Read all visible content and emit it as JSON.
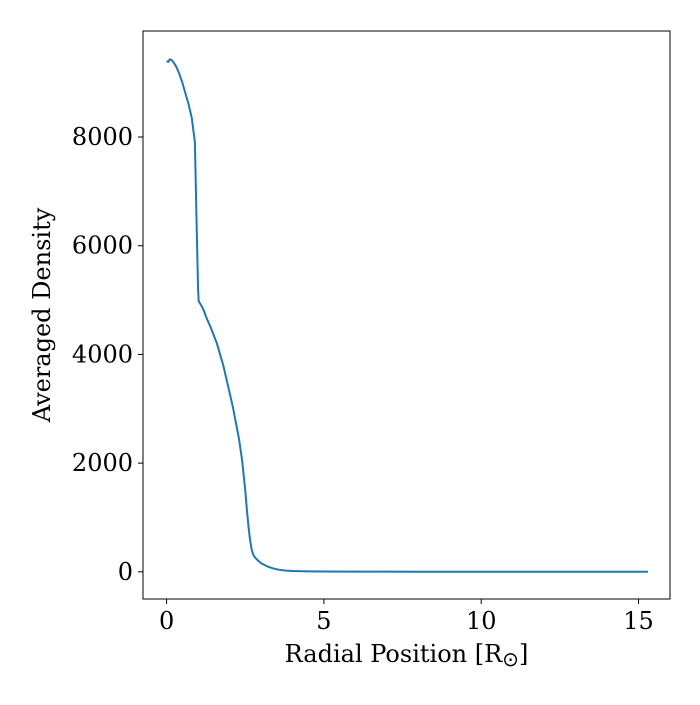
{
  "chart_data": {
    "type": "line",
    "title": "",
    "xlabel": "Radial Position [R",
    "xlabel_symbol": "⊙",
    "xlabel_close": "]",
    "ylabel": "Averaged Density",
    "xlim": [
      -0.75,
      16.0
    ],
    "ylim": [
      -500,
      9950
    ],
    "xticks": [
      0,
      5,
      10,
      15
    ],
    "xtick_labels": [
      "0",
      "5",
      "10",
      "15"
    ],
    "yticks": [
      0,
      2000,
      4000,
      6000,
      8000
    ],
    "ytick_labels": [
      "0",
      "2000",
      "4000",
      "6000",
      "8000"
    ],
    "grid": false,
    "legend": "none",
    "colors": {
      "line": "#1f77b4",
      "axes": "#000000"
    },
    "series": [
      {
        "x": [
          0.0,
          0.05,
          0.1,
          0.15,
          0.2,
          0.3,
          0.4,
          0.5,
          0.6,
          0.7,
          0.8,
          0.9,
          0.95,
          1.0,
          1.02,
          1.05,
          1.08,
          1.1,
          1.15,
          1.2,
          1.25,
          1.3,
          1.4,
          1.5,
          1.6,
          1.7,
          1.8,
          1.9,
          2.0,
          2.1,
          2.2,
          2.3,
          2.4,
          2.5,
          2.55,
          2.6,
          2.65,
          2.7,
          2.75,
          2.8,
          2.85,
          2.9,
          3.0,
          3.2,
          3.4,
          3.6,
          3.8,
          4.0,
          4.5,
          5.0,
          6.0,
          8.0,
          10.0,
          12.0,
          14.0,
          15.3
        ],
        "y": [
          9400,
          9380,
          9430,
          9420,
          9390,
          9300,
          9170,
          9000,
          8800,
          8600,
          8350,
          7900,
          6500,
          5200,
          4980,
          4950,
          4920,
          4900,
          4850,
          4780,
          4700,
          4630,
          4500,
          4350,
          4200,
          4000,
          3800,
          3550,
          3300,
          3050,
          2750,
          2450,
          2050,
          1500,
          1150,
          850,
          600,
          420,
          320,
          270,
          240,
          210,
          160,
          100,
          60,
          35,
          22,
          15,
          8,
          5,
          3,
          2,
          1,
          1,
          1,
          1
        ]
      }
    ]
  }
}
